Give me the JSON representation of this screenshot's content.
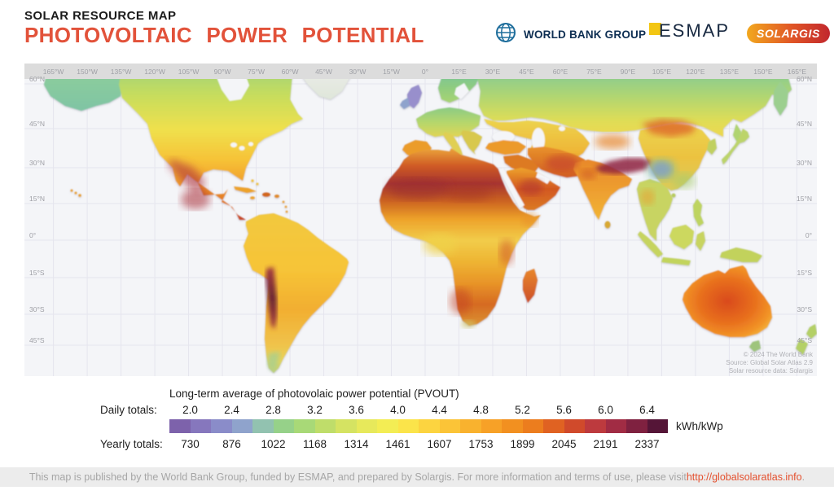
{
  "header": {
    "kicker": "SOLAR RESOURCE MAP",
    "title": "PHOTOVOLTAIC  POWER  POTENTIAL",
    "logos": {
      "world_bank": "WORLD BANK GROUP",
      "esmap": "ESMAP",
      "solargis": "SOLARGIS"
    }
  },
  "map": {
    "lon_labels": [
      "165°W",
      "150°W",
      "135°W",
      "120°W",
      "105°W",
      "90°W",
      "75°W",
      "60°W",
      "45°W",
      "30°W",
      "15°W",
      "0°",
      "15°E",
      "30°E",
      "45°E",
      "60°E",
      "75°E",
      "90°E",
      "105°E",
      "120°E",
      "135°E",
      "150°E",
      "165°E"
    ],
    "lat_labels": [
      "60°N",
      "45°N",
      "30°N",
      "15°N",
      "0°",
      "15°S",
      "30°S",
      "45°S"
    ],
    "attribution": [
      "© 2024 The World Bank",
      "Source: Global Solar Atlas 2.9",
      "Solar resource data: Solargis"
    ]
  },
  "legend": {
    "title": "Long-term average of photovolaic power potential (PVOUT)",
    "daily_label": "Daily totals:",
    "yearly_label": "Yearly totals:",
    "unit": "kWh/kWp",
    "daily_values": [
      "2.0",
      "2.4",
      "2.8",
      "3.2",
      "3.6",
      "4.0",
      "4.4",
      "4.8",
      "5.2",
      "5.6",
      "6.0",
      "6.4"
    ],
    "yearly_values": [
      "730",
      "876",
      "1022",
      "1168",
      "1314",
      "1461",
      "1607",
      "1753",
      "1899",
      "2045",
      "2191",
      "2337"
    ],
    "colors": [
      "#7d62ab",
      "#8677bd",
      "#8a8cc9",
      "#8fa3cc",
      "#92c2b0",
      "#96d189",
      "#a8d977",
      "#bfdd6a",
      "#d5e362",
      "#e7e95b",
      "#f3ed54",
      "#fbe44a",
      "#fcd440",
      "#fbc437",
      "#f9b22e",
      "#f7a127",
      "#f29020",
      "#ec7d1e",
      "#e06222",
      "#d04a2b",
      "#bd3a3e",
      "#a12c44",
      "#7f2140",
      "#551537"
    ]
  },
  "footer": {
    "text": "This map is published by the World Bank Group, funded by ESMAP, and prepared by Solargis. For more information and terms of use, please visit ",
    "link": "http://globalsolaratlas.info",
    "suffix": "."
  },
  "colors": {
    "accent_title": "#e2523a",
    "link": "#e4502e",
    "ocean": "#f4f5f8",
    "footer_bg": "#ececec"
  }
}
